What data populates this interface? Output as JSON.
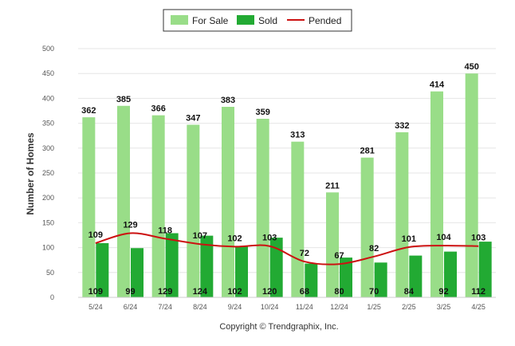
{
  "chart_data": {
    "type": "bar",
    "title": "",
    "xlabel": "",
    "ylabel": "Number of Homes",
    "ylim": [
      0,
      500
    ],
    "yticks": [
      0,
      50,
      100,
      150,
      200,
      250,
      300,
      350,
      400,
      450,
      500
    ],
    "grid": true,
    "legend_position": "top-center",
    "categories": [
      "5/24",
      "6/24",
      "7/24",
      "8/24",
      "9/24",
      "10/24",
      "11/24",
      "12/24",
      "1/25",
      "2/25",
      "3/25",
      "4/25"
    ],
    "series": [
      {
        "name": "For Sale",
        "type": "bar",
        "color": "#99dd88",
        "values": [
          362,
          385,
          366,
          347,
          383,
          359,
          313,
          211,
          281,
          332,
          414,
          450
        ]
      },
      {
        "name": "Sold",
        "type": "bar",
        "color": "#22aa33",
        "values": [
          109,
          99,
          129,
          124,
          102,
          120,
          68,
          80,
          70,
          84,
          92,
          112
        ]
      },
      {
        "name": "Pended",
        "type": "line",
        "color": "#cc1111",
        "values": [
          109,
          129,
          118,
          107,
          102,
          103,
          72,
          67,
          82,
          101,
          104,
          103
        ]
      }
    ]
  },
  "footer": {
    "copyright": "Copyright © Trendgraphix, Inc."
  }
}
